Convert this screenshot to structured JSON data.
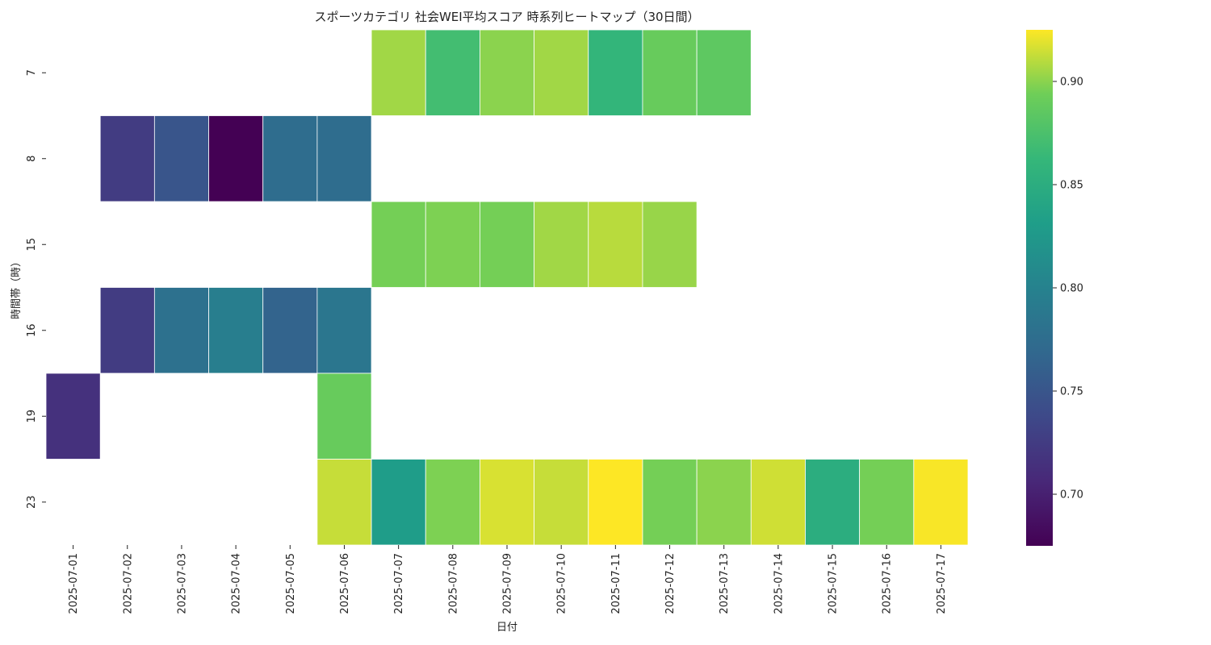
{
  "chart_data": {
    "type": "heatmap",
    "title": "スポーツカテゴリ 社会WEI平均スコア 時系列ヒートマップ（30日間）",
    "xlabel": "日付",
    "ylabel": "時間帯（時）",
    "x_categories": [
      "2025-07-01",
      "2025-07-02",
      "2025-07-03",
      "2025-07-04",
      "2025-07-05",
      "2025-07-06",
      "2025-07-07",
      "2025-07-08",
      "2025-07-09",
      "2025-07-10",
      "2025-07-11",
      "2025-07-12",
      "2025-07-13",
      "2025-07-14",
      "2025-07-15",
      "2025-07-16",
      "2025-07-17"
    ],
    "y_categories": [
      "7",
      "8",
      "15",
      "16",
      "19",
      "23"
    ],
    "values": [
      [
        null,
        null,
        null,
        null,
        null,
        null,
        0.905,
        0.87,
        0.9,
        0.905,
        0.86,
        0.89,
        0.885,
        null,
        null,
        null,
        null
      ],
      [
        null,
        0.725,
        0.75,
        0.675,
        0.775,
        0.775,
        null,
        null,
        null,
        null,
        null,
        null,
        null,
        null,
        null,
        null,
        null
      ],
      [
        null,
        null,
        null,
        null,
        null,
        null,
        0.895,
        0.897,
        0.895,
        0.905,
        0.91,
        0.903,
        null,
        null,
        null,
        null,
        null
      ],
      [
        null,
        0.725,
        0.78,
        0.795,
        0.765,
        0.785,
        null,
        null,
        null,
        null,
        null,
        null,
        null,
        null,
        null,
        null,
        null
      ],
      [
        0.715,
        null,
        null,
        null,
        null,
        0.89,
        null,
        null,
        null,
        null,
        null,
        null,
        null,
        null,
        null,
        null,
        null
      ],
      [
        null,
        null,
        null,
        null,
        null,
        0.913,
        0.83,
        0.897,
        0.917,
        0.913,
        0.925,
        0.895,
        0.9,
        0.915,
        0.85,
        0.895,
        0.924
      ]
    ],
    "colorbar": {
      "colormap": "viridis",
      "range": [
        0.675,
        0.925
      ],
      "ticks": [
        0.7,
        0.75,
        0.8,
        0.85,
        0.9
      ],
      "tick_labels": [
        "0.70",
        "0.75",
        "0.80",
        "0.85",
        "0.90"
      ]
    }
  }
}
